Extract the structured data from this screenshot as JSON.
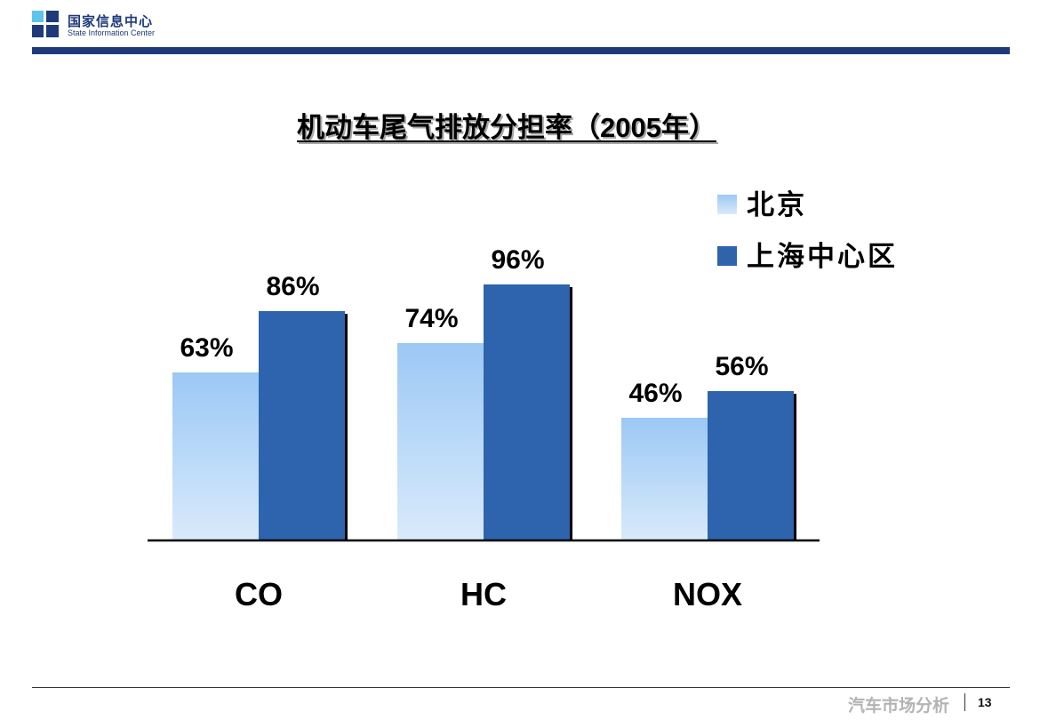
{
  "header": {
    "org_name_cn": "国家信息中心",
    "org_name_en": "State Information Center",
    "brand_color": "#1f3a7a"
  },
  "footer": {
    "section": "汽车市场分析",
    "page_number": "13"
  },
  "chart_data": {
    "type": "bar",
    "title": "机动车尾气排放分担率（2005年）",
    "categories": [
      "CO",
      "HC",
      "NOX"
    ],
    "series": [
      {
        "name": "北京",
        "values": [
          63,
          74,
          46
        ],
        "labels": [
          "63%",
          "74%",
          "46%"
        ],
        "color": "#9cc8f5"
      },
      {
        "name": "上海中心区",
        "values": [
          86,
          96,
          56
        ],
        "labels": [
          "86%",
          "96%",
          "56%"
        ],
        "color": "#2e63ad"
      }
    ],
    "ylim": [
      0,
      100
    ],
    "unit": "%",
    "grid": false,
    "legend": "top-right"
  }
}
